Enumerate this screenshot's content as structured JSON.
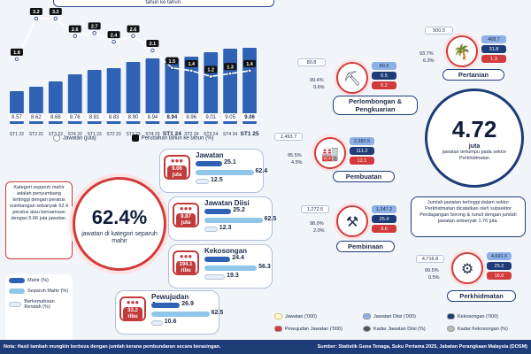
{
  "top_note": "tahun ke tahun.",
  "chart_data": {
    "type": "bar",
    "categories": [
      "ST1 22",
      "ST2 22",
      "ST3 22",
      "ST4 22",
      "ST1 23",
      "ST2 23",
      "ST3 23",
      "ST4 23",
      "ST1 24",
      "ST2 24",
      "ST3 24",
      "ST4 24",
      "ST1 25"
    ],
    "category_bold": [
      false,
      false,
      false,
      false,
      false,
      false,
      false,
      false,
      true,
      false,
      false,
      false,
      true
    ],
    "series": [
      {
        "name": "Jawatan (juta)",
        "type": "bar",
        "values": [
          8.57,
          8.62,
          8.68,
          8.76,
          8.81,
          8.83,
          8.9,
          8.94,
          8.94,
          8.96,
          9.01,
          9.05,
          9.06
        ]
      },
      {
        "name": "Perubahan tahun ke tahun (%)",
        "type": "line",
        "values": [
          1.8,
          3.2,
          3.2,
          2.6,
          2.7,
          2.4,
          2.6,
          2.1,
          1.5,
          1.4,
          1.2,
          1.3,
          1.4
        ]
      }
    ],
    "colors": {
      "bar": "#2f62b5",
      "line": "#1e3c78",
      "label_box": "#111111"
    }
  },
  "legend": {
    "jobs": "Jawatan (juta)",
    "yoy": "Perubahan tahun ke tahun (%)"
  },
  "skill": {
    "info_text": "Kategori separuh mahir adalah penyumbang tertinggi dengan peratus sumbangan sebanyak 62.4 peratus atau bersamaan dengan 5.66 juta jawatan.",
    "big_pct": "62.4%",
    "big_label": "jawatan di kategori separuh mahir",
    "colors": {
      "mahir": "#2f62b5",
      "separuh": "#8fc6ea",
      "rendah": "#e6eef8"
    },
    "legend": [
      {
        "label": "Mahir (%)"
      },
      {
        "label": "Separuh Mahir (%)"
      },
      {
        "label": "Berkemahiran Rendah (%)"
      }
    ],
    "categories": [
      {
        "title": "Jawatan",
        "badge": "9.06",
        "unit": "juta",
        "mahir": 25.1,
        "separuh": 62.4,
        "rendah": 12.5
      },
      {
        "title": "Jawatan Diisi",
        "badge": "8.87",
        "unit": "juta",
        "mahir": 25.2,
        "separuh": 62.5,
        "rendah": 12.3
      },
      {
        "title": "Kekosongan",
        "badge": "194.1",
        "unit": "ribu",
        "mahir": 24.4,
        "separuh": 56.3,
        "rendah": 19.3
      },
      {
        "title": "Pewujudan Jawatan",
        "badge": "33.2",
        "unit": "ribu",
        "mahir": 26.9,
        "separuh": 62.5,
        "rendah": 10.6
      }
    ]
  },
  "sectors": [
    {
      "name": "Pertanian",
      "jawatan": "500.5",
      "diisi": "468.7",
      "kosong": "31.8",
      "pewujudan": "1.3",
      "kadar_diisi": "93.7%",
      "kadar_kosong": "6.3%"
    },
    {
      "name": "Perlombongan & Pengkuarian",
      "jawatan": "80.8",
      "diisi": "80.3",
      "kosong": "0.5",
      "pewujudan": "0.2",
      "kadar_diisi": "99.4%",
      "kadar_kosong": "0.6%"
    },
    {
      "name": "Pembuatan",
      "jawatan": "2,493.7",
      "diisi": "2,382.5",
      "kosong": "111.2",
      "pewujudan": "12.1",
      "kadar_diisi": "95.5%",
      "kadar_kosong": "4.5%"
    },
    {
      "name": "Pembinaan",
      "jawatan": "1,272.5",
      "diisi": "1,247.2",
      "kosong": "25.4",
      "pewujudan": "3.6",
      "kadar_diisi": "98.0%",
      "kadar_kosong": "2.0%"
    },
    {
      "name": "Perkhidmatan",
      "jawatan": "4,716.8",
      "diisi": "4,691.6",
      "kosong": "25.2",
      "pewujudan": "16.0",
      "kadar_diisi": "99.5%",
      "kadar_kosong": "0.5%"
    }
  ],
  "services_highlight": {
    "value": "4.72",
    "unit": "juta",
    "desc": "jawatan tertumpu pada sektor Perkhidmatan"
  },
  "services_info": "Jumlah jawatan tertinggi dalam sektor Perkhidmatan dicatatkan oleh subsektor Perdagangan borong & runcit dengan jumlah jawatan sebanyak 1.76 juta.",
  "right_legend": [
    {
      "label": "Jawatan ('000)"
    },
    {
      "label": "Jawatan Diisi ('000)"
    },
    {
      "label": "Kekosongan ('000)"
    },
    {
      "label": "Pewujudan Jawatan ('000)"
    },
    {
      "label": "Kadar Jawatan Diisi (%)"
    },
    {
      "label": "Kadar Kekosongan (%)"
    }
  ],
  "footer": {
    "note": "Nota: Hasil tambah mungkin berbeza dengan jumlah kerana pembundaran secara berasingan.",
    "source": "Sumber: Statistik Guna Tenaga, Suku Pertama 2025, Jabatan Perangkaan Malaysia (DOSM)"
  }
}
